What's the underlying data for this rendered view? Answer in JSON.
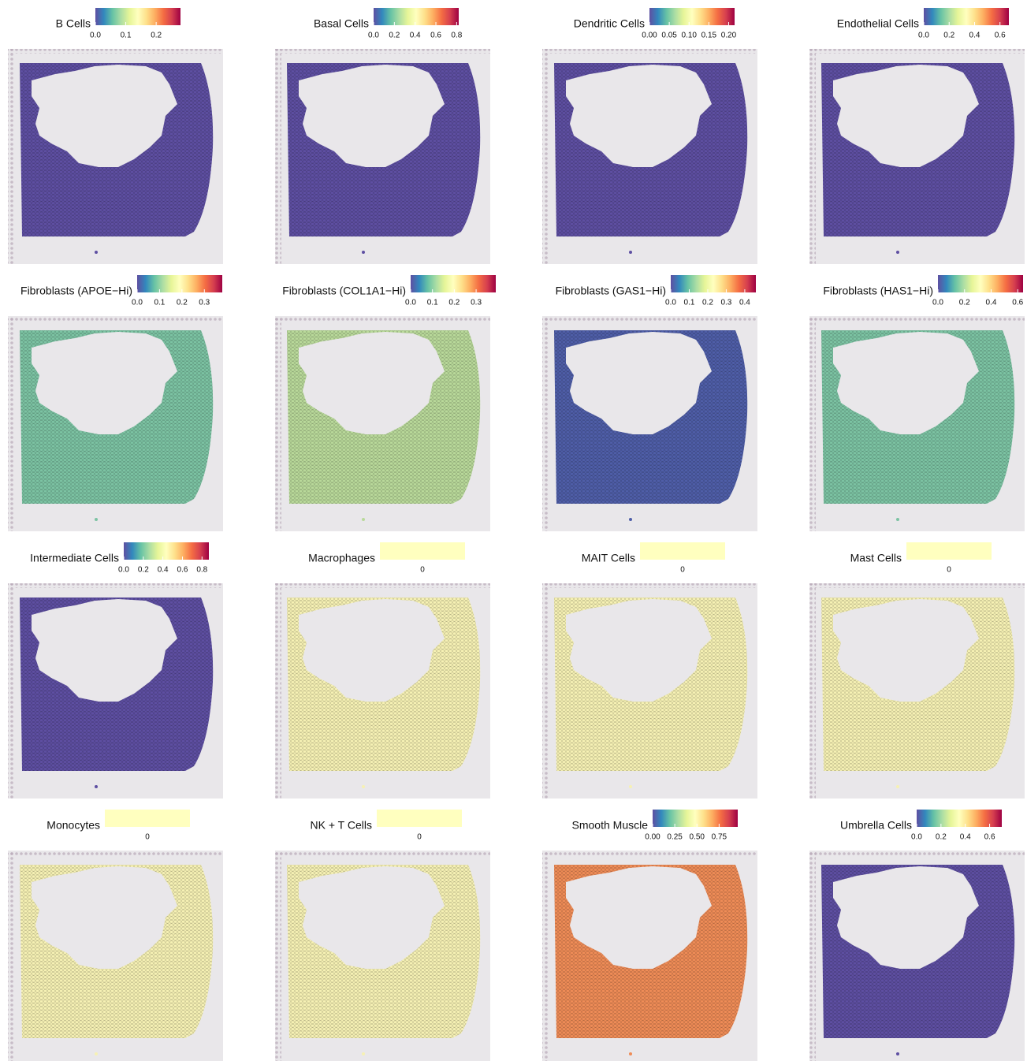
{
  "chart_data": [
    {
      "type": "spatial",
      "title": "B Cells",
      "clim": [
        0,
        0.28
      ],
      "cticks": [
        {
          "value": 0,
          "label": "0.0"
        },
        0.1,
        0.2
      ],
      "colorscale": [
        "#5e4fa2",
        "#3288bd",
        "#66c2a5",
        "#abdda4",
        "#e6f598",
        "#ffffbf",
        "#fee08b",
        "#fdae61",
        "#f46d43",
        "#d53e4f",
        "#9e0142"
      ],
      "color": "#5e4fa2"
    },
    {
      "type": "spatial",
      "title": "Basal Cells",
      "clim": [
        0,
        0.82
      ],
      "cticks": [
        {
          "value": 0,
          "label": "0.0"
        },
        0.2,
        0.4,
        0.6,
        0.8
      ],
      "colorscale": [
        "#5e4fa2",
        "#3288bd",
        "#66c2a5",
        "#abdda4",
        "#e6f598",
        "#ffffbf",
        "#fee08b",
        "#fdae61",
        "#f46d43",
        "#d53e4f",
        "#9e0142"
      ],
      "color": "#5e4fa2"
    },
    {
      "type": "spatial",
      "title": "Dendritic Cells",
      "clim": [
        0,
        0.215
      ],
      "cticks": [
        {
          "value": 0,
          "label": "0.00"
        },
        0.05,
        {
          "value": 0.1,
          "label": "0.10"
        },
        0.15,
        {
          "value": 0.2,
          "label": "0.20"
        }
      ],
      "colorscale": [
        "#5e4fa2",
        "#3288bd",
        "#66c2a5",
        "#abdda4",
        "#e6f598",
        "#ffffbf",
        "#fee08b",
        "#fdae61",
        "#f46d43",
        "#d53e4f",
        "#9e0142"
      ],
      "color": "#5e4fa2"
    },
    {
      "type": "spatial",
      "title": "Endothelial Cells",
      "clim": [
        0,
        0.67
      ],
      "cticks": [
        {
          "value": 0,
          "label": "0.0"
        },
        0.2,
        0.4,
        0.6
      ],
      "colorscale": [
        "#5e4fa2",
        "#3288bd",
        "#66c2a5",
        "#abdda4",
        "#e6f598",
        "#ffffbf",
        "#fee08b",
        "#fdae61",
        "#f46d43",
        "#d53e4f",
        "#9e0142"
      ],
      "color": "#5e4fa2"
    },
    {
      "type": "spatial",
      "title": "Fibroblasts (APOE−Hi)",
      "clim": [
        0,
        0.38
      ],
      "cticks": [
        {
          "value": 0,
          "label": "0.0"
        },
        0.1,
        0.2,
        0.3
      ],
      "colorscale": [
        "#5e4fa2",
        "#3288bd",
        "#66c2a5",
        "#abdda4",
        "#e6f598",
        "#ffffbf",
        "#fee08b",
        "#fdae61",
        "#f46d43",
        "#d53e4f",
        "#9e0142"
      ],
      "color": "#7cc3a3"
    },
    {
      "type": "spatial",
      "title": "Fibroblasts (COL1A1−Hi)",
      "clim": [
        0,
        0.39
      ],
      "cticks": [
        {
          "value": 0,
          "label": "0.0"
        },
        0.1,
        0.2,
        0.3
      ],
      "colorscale": [
        "#5e4fa2",
        "#3288bd",
        "#66c2a5",
        "#abdda4",
        "#e6f598",
        "#ffffbf",
        "#fee08b",
        "#fdae61",
        "#f46d43",
        "#d53e4f",
        "#9e0142"
      ],
      "color": "#b9d99a"
    },
    {
      "type": "spatial",
      "title": "Fibroblasts (GAS1−Hi)",
      "clim": [
        0,
        0.46
      ],
      "cticks": [
        {
          "value": 0,
          "label": "0.0"
        },
        0.1,
        0.2,
        0.3,
        0.4
      ],
      "colorscale": [
        "#5e4fa2",
        "#3288bd",
        "#66c2a5",
        "#abdda4",
        "#e6f598",
        "#ffffbf",
        "#fee08b",
        "#fdae61",
        "#f46d43",
        "#d53e4f",
        "#9e0142"
      ],
      "color": "#4f5ea8"
    },
    {
      "type": "spatial",
      "title": "Fibroblasts (HAS1−Hi)",
      "clim": [
        0,
        0.64
      ],
      "cticks": [
        {
          "value": 0,
          "label": "0.0"
        },
        0.2,
        0.4,
        0.6
      ],
      "colorscale": [
        "#5e4fa2",
        "#3288bd",
        "#66c2a5",
        "#abdda4",
        "#e6f598",
        "#ffffbf",
        "#fee08b",
        "#fdae61",
        "#f46d43",
        "#d53e4f",
        "#9e0142"
      ],
      "color": "#7cc3a3"
    },
    {
      "type": "spatial",
      "title": "Intermediate Cells",
      "clim": [
        0,
        0.87
      ],
      "cticks": [
        {
          "value": 0,
          "label": "0.0"
        },
        0.2,
        0.4,
        0.6,
        0.8
      ],
      "colorscale": [
        "#5e4fa2",
        "#3288bd",
        "#66c2a5",
        "#abdda4",
        "#e6f598",
        "#ffffbf",
        "#fee08b",
        "#fdae61",
        "#f46d43",
        "#d53e4f",
        "#9e0142"
      ],
      "color": "#5e4fa2"
    },
    {
      "type": "spatial",
      "title": "Macrophages",
      "clim": [
        -1,
        1
      ],
      "cticks": [
        0
      ],
      "colorscale": [
        "#ffffbf"
      ],
      "color": "#f6f1b4"
    },
    {
      "type": "spatial",
      "title": "MAIT Cells",
      "clim": [
        -1,
        1
      ],
      "cticks": [
        0
      ],
      "colorscale": [
        "#ffffbf"
      ],
      "color": "#f6f1b4"
    },
    {
      "type": "spatial",
      "title": "Mast Cells",
      "clim": [
        -1,
        1
      ],
      "cticks": [
        0
      ],
      "colorscale": [
        "#ffffbf"
      ],
      "color": "#f6f1b4"
    },
    {
      "type": "spatial",
      "title": "Monocytes",
      "clim": [
        -1,
        1
      ],
      "cticks": [
        0
      ],
      "colorscale": [
        "#ffffbf"
      ],
      "color": "#f6f1b4"
    },
    {
      "type": "spatial",
      "title": "NK + T Cells",
      "clim": [
        -1,
        1
      ],
      "cticks": [
        0
      ],
      "colorscale": [
        "#ffffbf"
      ],
      "color": "#f6f1b4"
    },
    {
      "type": "spatial",
      "title": "Smooth Muscle",
      "clim": [
        0,
        0.96
      ],
      "cticks": [
        {
          "value": 0,
          "label": "0.00"
        },
        0.25,
        {
          "value": 0.5,
          "label": "0.50"
        },
        0.75
      ],
      "colorscale": [
        "#5e4fa2",
        "#3288bd",
        "#66c2a5",
        "#abdda4",
        "#e6f598",
        "#ffffbf",
        "#fee08b",
        "#fdae61",
        "#f46d43",
        "#d53e4f",
        "#9e0142"
      ],
      "color": "#ef8c57"
    },
    {
      "type": "spatial",
      "title": "Umbrella Cells",
      "clim": [
        0,
        0.7
      ],
      "cticks": [
        {
          "value": 0,
          "label": "0.0"
        },
        0.2,
        0.4,
        0.6
      ],
      "colorscale": [
        "#5e4fa2",
        "#3288bd",
        "#66c2a5",
        "#abdda4",
        "#e6f598",
        "#ffffbf",
        "#fee08b",
        "#fdae61",
        "#f46d43",
        "#d53e4f",
        "#9e0142"
      ],
      "color": "#5e4fa2"
    }
  ]
}
